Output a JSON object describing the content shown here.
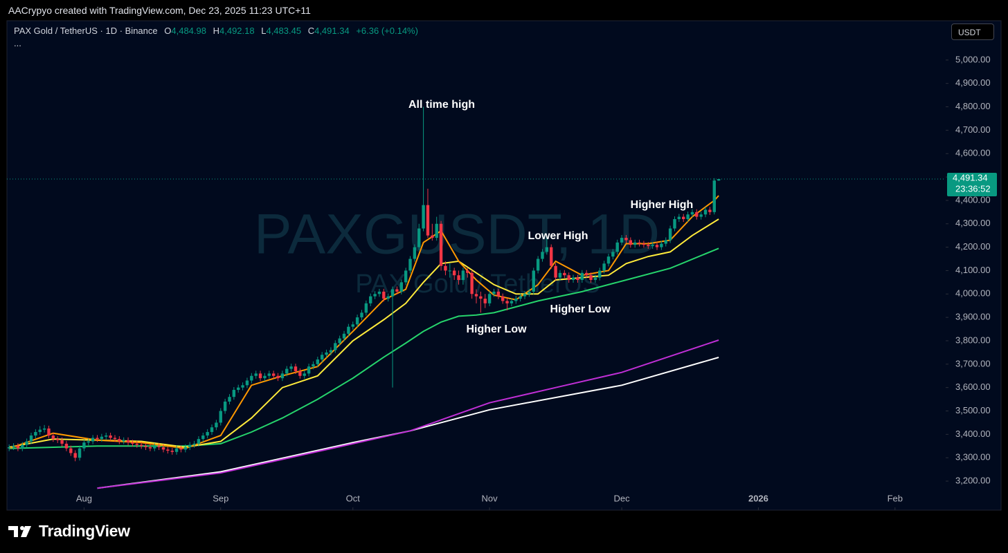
{
  "header": {
    "text": "AACrypyo created with TradingView.com, Dec 23, 2025 11:23 UTC+11"
  },
  "symbol_bar": {
    "symbol": "PAX Gold / TetherUS · 1D · Binance",
    "ohlc": [
      {
        "key": "O",
        "value": "4,484.98"
      },
      {
        "key": "H",
        "value": "4,492.18"
      },
      {
        "key": "L",
        "value": "4,483.45"
      },
      {
        "key": "C",
        "value": "4,491.34"
      }
    ],
    "change": "+6.36 (+0.14%)",
    "more": "..."
  },
  "currency_button": "USDT",
  "footer": {
    "brand": "TradingView"
  },
  "chart_data": {
    "type": "candlestick",
    "watermark": {
      "symbol": "PAXGUSDT, 1D",
      "description": "PAX Gold / TetherUS"
    },
    "up_color": "#089981",
    "down_color": "#f23645",
    "open": [
      3340,
      3345,
      3350,
      3340,
      3355,
      3370,
      3395,
      3410,
      3420,
      3425,
      3395,
      3380,
      3375,
      3360,
      3340,
      3320,
      3300,
      3340,
      3365,
      3370,
      3385,
      3380,
      3390,
      3395,
      3385,
      3380,
      3370,
      3375,
      3365,
      3360,
      3355,
      3350,
      3345,
      3340,
      3350,
      3345,
      3335,
      3330,
      3325,
      3340,
      3335,
      3345,
      3355,
      3360,
      3380,
      3395,
      3410,
      3430,
      3450,
      3500,
      3540,
      3560,
      3590,
      3600,
      3610,
      3630,
      3650,
      3660,
      3640,
      3650,
      3660,
      3650,
      3640,
      3660,
      3680,
      3690,
      3670,
      3650,
      3660,
      3690,
      3700,
      3720,
      3740,
      3750,
      3760,
      3790,
      3810,
      3830,
      3860,
      3870,
      3900,
      3920,
      3960,
      3990,
      4000,
      4010,
      3980,
      3990,
      4020,
      4010,
      4050,
      4100,
      4150,
      4200,
      4280,
      4380,
      4250,
      4240,
      4300,
      4120,
      4100,
      4100,
      4080,
      4060,
      4100,
      4090,
      4000,
      3990,
      3980,
      3960,
      4000,
      4010,
      3990,
      3970,
      3960,
      3970,
      3980,
      3990,
      4000,
      4010,
      4100,
      4150,
      4180,
      4200,
      4120,
      4070,
      4090,
      4080,
      4060,
      4070,
      4060,
      4090,
      4080,
      4060,
      4070,
      4100,
      4130,
      4160,
      4180,
      4220,
      4240,
      4230,
      4210,
      4220,
      4215,
      4210,
      4205,
      4210,
      4200,
      4215,
      4230,
      4280,
      4320,
      4330,
      4320,
      4340,
      4350,
      4330,
      4340,
      4360,
      4350,
      4484.98
    ],
    "high": [
      3357,
      3362,
      3362,
      3367,
      3382,
      3407,
      3422,
      3435,
      3440,
      3437,
      3407,
      3392,
      3387,
      3372,
      3352,
      3332,
      3352,
      3377,
      3382,
      3397,
      3397,
      3402,
      3407,
      3407,
      3397,
      3392,
      3387,
      3387,
      3377,
      3372,
      3367,
      3362,
      3357,
      3362,
      3362,
      3357,
      3347,
      3342,
      3352,
      3352,
      3357,
      3367,
      3372,
      3392,
      3407,
      3422,
      3442,
      3462,
      3512,
      3552,
      3572,
      3602,
      3612,
      3622,
      3642,
      3662,
      3672,
      3672,
      3662,
      3672,
      3672,
      3662,
      3672,
      3692,
      3702,
      3702,
      3682,
      3672,
      3702,
      3712,
      3732,
      3752,
      3762,
      3772,
      3802,
      3822,
      3842,
      3872,
      3882,
      3912,
      3932,
      3972,
      4002,
      4012,
      4022,
      4022,
      4002,
      4032,
      4032,
      4062,
      4112,
      4162,
      4212,
      4300,
      4800,
      4450,
      4300,
      4330,
      4312,
      4140,
      4130,
      4112,
      4100,
      4112,
      4112,
      4102,
      4020,
      4010,
      4000,
      4012,
      4022,
      4022,
      4002,
      3982,
      3982,
      3992,
      4002,
      4012,
      4022,
      4112,
      4162,
      4192,
      4240,
      4212,
      4132,
      4102,
      4102,
      4092,
      4082,
      4082,
      4102,
      4102,
      4092,
      4082,
      4112,
      4142,
      4172,
      4192,
      4232,
      4252,
      4252,
      4242,
      4232,
      4232,
      4227,
      4222,
      4222,
      4222,
      4227,
      4242,
      4292,
      4332,
      4342,
      4342,
      4352,
      4362,
      4362,
      4352,
      4372,
      4372,
      4495,
      4492.18
    ],
    "low": [
      3328,
      3333,
      3328,
      3328,
      3343,
      3358,
      3383,
      3398,
      3408,
      3383,
      3368,
      3363,
      3348,
      3328,
      3308,
      3285,
      3288,
      3328,
      3353,
      3358,
      3368,
      3368,
      3378,
      3373,
      3368,
      3358,
      3358,
      3353,
      3348,
      3343,
      3338,
      3333,
      3328,
      3328,
      3333,
      3323,
      3318,
      3313,
      3313,
      3323,
      3323,
      3333,
      3343,
      3348,
      3368,
      3383,
      3398,
      3418,
      3438,
      3488,
      3528,
      3548,
      3578,
      3588,
      3598,
      3618,
      3638,
      3628,
      3628,
      3638,
      3638,
      3628,
      3628,
      3648,
      3668,
      3658,
      3638,
      3638,
      3648,
      3678,
      3688,
      3708,
      3728,
      3738,
      3748,
      3778,
      3798,
      3818,
      3848,
      3858,
      3888,
      3908,
      3948,
      3978,
      3988,
      3968,
      3968,
      3600,
      3998,
      3998,
      4038,
      4088,
      4138,
      4188,
      4268,
      4240,
      4228,
      4228,
      4100,
      4080,
      4070,
      4060,
      4040,
      4040,
      4070,
      3980,
      3960,
      3920,
      3940,
      3948,
      3988,
      3978,
      3958,
      3930,
      3948,
      3958,
      3968,
      3978,
      3988,
      3998,
      4088,
      4138,
      4168,
      4108,
      4058,
      4058,
      4068,
      4048,
      4048,
      4048,
      4048,
      4068,
      4048,
      4048,
      4058,
      4088,
      4118,
      4148,
      4168,
      4208,
      4218,
      4198,
      4198,
      4203,
      4198,
      4193,
      4193,
      4188,
      4188,
      4203,
      4218,
      4268,
      4308,
      4308,
      4308,
      4328,
      4318,
      4318,
      4328,
      4338,
      4340,
      4483.45
    ],
    "close": [
      3345,
      3350,
      3340,
      3355,
      3370,
      3395,
      3410,
      3420,
      3425,
      3395,
      3380,
      3375,
      3360,
      3340,
      3320,
      3300,
      3340,
      3365,
      3370,
      3385,
      3380,
      3390,
      3395,
      3385,
      3380,
      3370,
      3375,
      3365,
      3360,
      3355,
      3350,
      3345,
      3340,
      3350,
      3345,
      3335,
      3330,
      3325,
      3340,
      3335,
      3345,
      3355,
      3360,
      3380,
      3395,
      3410,
      3430,
      3450,
      3500,
      3540,
      3560,
      3590,
      3600,
      3610,
      3630,
      3650,
      3660,
      3640,
      3650,
      3660,
      3650,
      3640,
      3660,
      3680,
      3690,
      3670,
      3650,
      3660,
      3690,
      3700,
      3720,
      3740,
      3750,
      3760,
      3790,
      3810,
      3830,
      3860,
      3870,
      3900,
      3920,
      3960,
      3990,
      4000,
      4010,
      3980,
      3990,
      4020,
      4010,
      4050,
      4100,
      4150,
      4200,
      4280,
      4380,
      4250,
      4240,
      4300,
      4120,
      4100,
      4100,
      4080,
      4060,
      4100,
      4090,
      4000,
      3990,
      3980,
      3960,
      4000,
      4010,
      3990,
      3970,
      3960,
      3970,
      3980,
      3990,
      4000,
      4010,
      4100,
      4150,
      4180,
      4200,
      4120,
      4070,
      4090,
      4080,
      4060,
      4070,
      4060,
      4090,
      4080,
      4060,
      4070,
      4100,
      4130,
      4160,
      4180,
      4220,
      4240,
      4230,
      4210,
      4220,
      4215,
      4210,
      4205,
      4210,
      4200,
      4215,
      4230,
      4280,
      4320,
      4330,
      4320,
      4340,
      4350,
      4330,
      4340,
      4360,
      4350,
      4485,
      4491.34
    ],
    "overlays": [
      {
        "color": "#ffffff",
        "x": [
          20,
          48,
          78,
          91,
          109,
          139,
          161
        ],
        "values": [
          3170,
          3240,
          3365,
          3415,
          3505,
          3610,
          3729
        ]
      },
      {
        "color": "#c02fd6",
        "x": [
          20,
          48,
          78,
          91,
          109,
          124,
          139,
          161
        ],
        "values": [
          3170,
          3235,
          3360,
          3415,
          3535,
          3600,
          3665,
          3803
        ]
      },
      {
        "color": "#26d46c",
        "x": [
          0,
          20,
          40,
          48,
          55,
          62,
          70,
          78,
          85,
          90,
          94,
          98,
          102,
          106,
          110,
          120,
          130,
          140,
          150,
          161
        ],
        "values": [
          3340,
          3350,
          3350,
          3360,
          3410,
          3470,
          3550,
          3640,
          3730,
          3790,
          3840,
          3880,
          3905,
          3910,
          3920,
          3970,
          4010,
          4060,
          4110,
          4195
        ]
      },
      {
        "color": "#ffeb3b",
        "x": [
          0,
          10,
          20,
          30,
          40,
          48,
          55,
          62,
          70,
          78,
          85,
          90,
          94,
          98,
          102,
          106,
          110,
          115,
          120,
          124,
          130,
          136,
          140,
          145,
          150,
          155,
          161
        ],
        "values": [
          3345,
          3380,
          3375,
          3370,
          3345,
          3370,
          3470,
          3600,
          3650,
          3800,
          3890,
          3960,
          4050,
          4130,
          4140,
          4090,
          4040,
          4000,
          4000,
          4060,
          4070,
          4080,
          4130,
          4160,
          4180,
          4250,
          4320
        ]
      },
      {
        "color": "#ff9800",
        "x": [
          0,
          10,
          20,
          30,
          40,
          48,
          55,
          62,
          70,
          78,
          85,
          90,
          94,
          98,
          102,
          106,
          110,
          115,
          120,
          124,
          130,
          136,
          140,
          145,
          150,
          155,
          160,
          161
        ],
        "values": [
          3340,
          3405,
          3375,
          3365,
          3340,
          3395,
          3610,
          3650,
          3690,
          3840,
          3975,
          4020,
          4220,
          4270,
          4140,
          4060,
          3995,
          3975,
          4040,
          4140,
          4080,
          4100,
          4215,
          4215,
          4230,
          4330,
          4400,
          4420
        ]
      }
    ],
    "xlim": [
      -0.5,
      212.5
    ],
    "xticks": [
      {
        "value": 17,
        "label": "Aug"
      },
      {
        "value": 48,
        "label": "Sep"
      },
      {
        "value": 78,
        "label": "Oct"
      },
      {
        "value": 109,
        "label": "Nov"
      },
      {
        "value": 139,
        "label": "Dec"
      },
      {
        "value": 170,
        "label": "2026"
      },
      {
        "value": 201,
        "label": "Feb"
      }
    ],
    "ylim": [
      3076,
      5168
    ],
    "yticks": [
      {
        "value": 3200,
        "label": "3,200.00"
      },
      {
        "value": 3300,
        "label": "3,300.00"
      },
      {
        "value": 3400,
        "label": "3,400.00"
      },
      {
        "value": 3500,
        "label": "3,500.00"
      },
      {
        "value": 3600,
        "label": "3,600.00"
      },
      {
        "value": 3700,
        "label": "3,700.00"
      },
      {
        "value": 3800,
        "label": "3,800.00"
      },
      {
        "value": 3900,
        "label": "3,900.00"
      },
      {
        "value": 4000,
        "label": "4,000.00"
      },
      {
        "value": 4100,
        "label": "4,100.00"
      },
      {
        "value": 4200,
        "label": "4,200.00"
      },
      {
        "value": 4300,
        "label": "4,300.00"
      },
      {
        "value": 4400,
        "label": "4,400.00"
      },
      {
        "value": 4500,
        "label": "4,500.00"
      },
      {
        "value": 4600,
        "label": "4,600.00"
      },
      {
        "value": 4700,
        "label": "4,700.00"
      },
      {
        "value": 4800,
        "label": "4,800.00"
      },
      {
        "value": 4900,
        "label": "4,900.00"
      },
      {
        "value": 5000,
        "label": "5,000.00"
      }
    ],
    "grid": false,
    "last_price": {
      "value": 4491.34,
      "label": "4,491.34"
    },
    "countdown": "23:36:52",
    "annotations": [
      {
        "text": "All time high"
      },
      {
        "text": "Lower High"
      },
      {
        "text": "Higher High"
      },
      {
        "text": "Higher Low"
      },
      {
        "text": "Higher Low"
      }
    ]
  }
}
